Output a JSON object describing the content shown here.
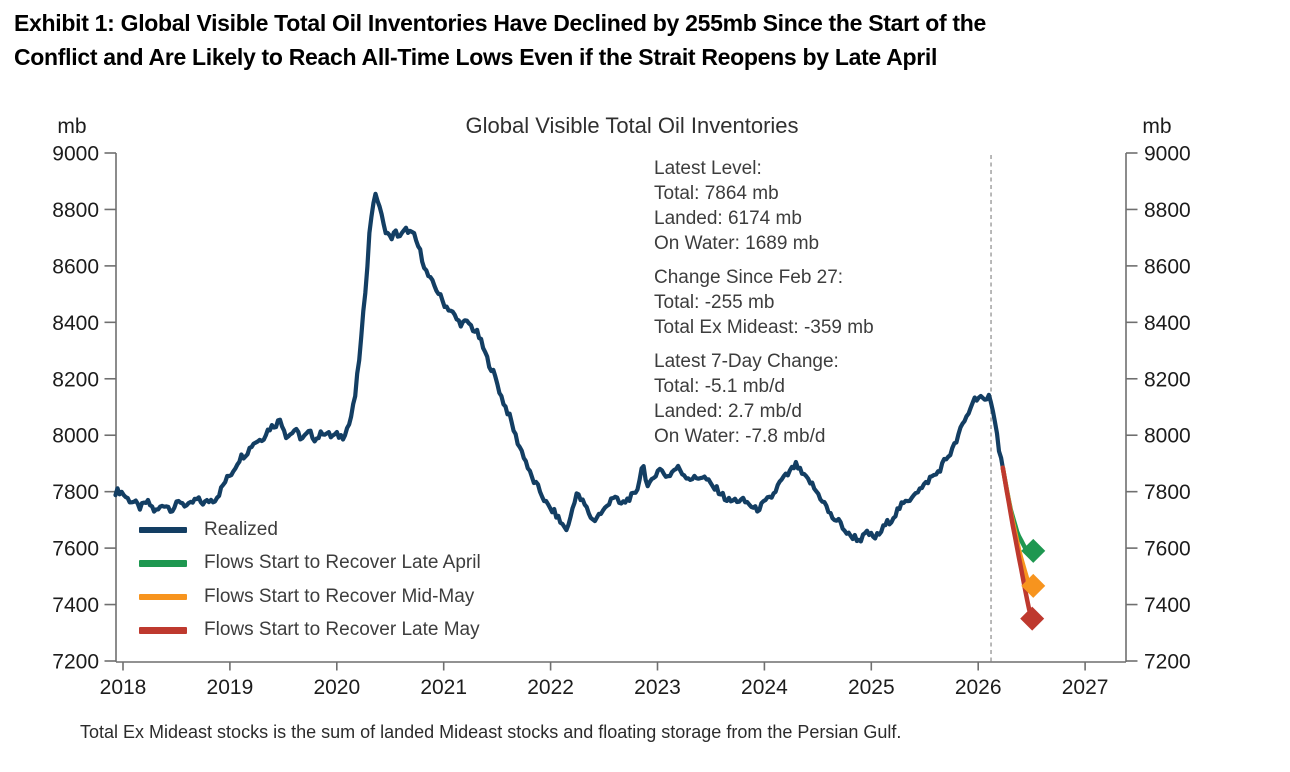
{
  "exhibit": {
    "title_line1": "Exhibit 1: Global Visible Total Oil Inventories Have Declined by 255mb Since the Start of the",
    "title_line2": "Conflict and Are Likely to Reach All-Time Lows Even if the Strait Reopens by Late April",
    "footnote": "Total Ex Mideast stocks is the sum of landed Mideast stocks and floating storage from the Persian Gulf."
  },
  "chart_data": {
    "type": "line",
    "title": "Global Visible Total Oil Inventories",
    "unit_left": "mb",
    "unit_right": "mb",
    "ylim": [
      7200,
      9000
    ],
    "yticks": [
      9000,
      8800,
      8600,
      8400,
      8200,
      8000,
      7800,
      7600,
      7400,
      7200
    ],
    "xticks": [
      2018,
      2019,
      2020,
      2021,
      2022,
      2023,
      2024,
      2025,
      2026,
      2027
    ],
    "grid": false,
    "legend_position": "lower-left",
    "event_line_x": 2026.12,
    "annotation": {
      "groups": [
        [
          "Latest Level:",
          "Total: 7864 mb",
          "Landed: 6174 mb",
          "On Water: 1689 mb"
        ],
        [
          "Change Since Feb 27:",
          "Total: -255 mb",
          "Total Ex Mideast: -359 mb"
        ],
        [
          "Latest 7-Day Change:",
          "Total: -5.1 mb/d",
          "Landed: 2.7 mb/d",
          "On Water: -7.8 mb/d"
        ]
      ]
    },
    "legend": [
      {
        "label": "Realized",
        "color": "#133E63"
      },
      {
        "label": "Flows Start to Recover Late April",
        "color": "#1E9750"
      },
      {
        "label": "Flows Start to Recover Mid-May",
        "color": "#F7941E"
      },
      {
        "label": "Flows Start to Recover Late May",
        "color": "#BE392E"
      }
    ],
    "series": [
      {
        "name": "Realized",
        "color": "#133E63",
        "width": 4.2,
        "noise": 12,
        "points": [
          [
            2017.93,
            7800
          ],
          [
            2018.0,
            7795
          ],
          [
            2018.08,
            7765
          ],
          [
            2018.15,
            7745
          ],
          [
            2018.22,
            7762
          ],
          [
            2018.3,
            7732
          ],
          [
            2018.38,
            7752
          ],
          [
            2018.46,
            7742
          ],
          [
            2018.54,
            7763
          ],
          [
            2018.62,
            7750
          ],
          [
            2018.7,
            7772
          ],
          [
            2018.78,
            7760
          ],
          [
            2018.85,
            7772
          ],
          [
            2018.92,
            7808
          ],
          [
            2019.0,
            7862
          ],
          [
            2019.1,
            7918
          ],
          [
            2019.2,
            7962
          ],
          [
            2019.3,
            7992
          ],
          [
            2019.4,
            8032
          ],
          [
            2019.47,
            8058
          ],
          [
            2019.53,
            7992
          ],
          [
            2019.6,
            8022
          ],
          [
            2019.67,
            7984
          ],
          [
            2019.74,
            8014
          ],
          [
            2019.8,
            7980
          ],
          [
            2019.87,
            8018
          ],
          [
            2019.94,
            7992
          ],
          [
            2020.0,
            8005
          ],
          [
            2020.06,
            7992
          ],
          [
            2020.12,
            8045
          ],
          [
            2020.17,
            8135
          ],
          [
            2020.22,
            8300
          ],
          [
            2020.27,
            8530
          ],
          [
            2020.31,
            8740
          ],
          [
            2020.35,
            8845
          ],
          [
            2020.39,
            8832
          ],
          [
            2020.44,
            8742
          ],
          [
            2020.5,
            8692
          ],
          [
            2020.55,
            8722
          ],
          [
            2020.6,
            8705
          ],
          [
            2020.66,
            8728
          ],
          [
            2020.72,
            8712
          ],
          [
            2020.78,
            8645
          ],
          [
            2020.84,
            8580
          ],
          [
            2020.9,
            8532
          ],
          [
            2020.96,
            8500
          ],
          [
            2021.03,
            8452
          ],
          [
            2021.1,
            8425
          ],
          [
            2021.17,
            8392
          ],
          [
            2021.24,
            8398
          ],
          [
            2021.31,
            8362
          ],
          [
            2021.4,
            8282
          ],
          [
            2021.5,
            8182
          ],
          [
            2021.6,
            8078
          ],
          [
            2021.7,
            7972
          ],
          [
            2021.8,
            7872
          ],
          [
            2021.9,
            7798
          ],
          [
            2022.0,
            7738
          ],
          [
            2022.08,
            7702
          ],
          [
            2022.16,
            7662
          ],
          [
            2022.24,
            7800
          ],
          [
            2022.32,
            7748
          ],
          [
            2022.4,
            7700
          ],
          [
            2022.48,
            7722
          ],
          [
            2022.57,
            7782
          ],
          [
            2022.65,
            7758
          ],
          [
            2022.73,
            7772
          ],
          [
            2022.8,
            7792
          ],
          [
            2022.86,
            7902
          ],
          [
            2022.91,
            7812
          ],
          [
            2023.0,
            7878
          ],
          [
            2023.1,
            7858
          ],
          [
            2023.2,
            7885
          ],
          [
            2023.3,
            7842
          ],
          [
            2023.4,
            7856
          ],
          [
            2023.5,
            7828
          ],
          [
            2023.6,
            7788
          ],
          [
            2023.7,
            7764
          ],
          [
            2023.8,
            7772
          ],
          [
            2023.9,
            7738
          ],
          [
            2024.0,
            7754
          ],
          [
            2024.1,
            7802
          ],
          [
            2024.2,
            7858
          ],
          [
            2024.3,
            7892
          ],
          [
            2024.4,
            7842
          ],
          [
            2024.5,
            7798
          ],
          [
            2024.6,
            7728
          ],
          [
            2024.7,
            7688
          ],
          [
            2024.8,
            7645
          ],
          [
            2024.88,
            7628
          ],
          [
            2024.95,
            7652
          ],
          [
            2025.02,
            7636
          ],
          [
            2025.1,
            7662
          ],
          [
            2025.2,
            7712
          ],
          [
            2025.3,
            7755
          ],
          [
            2025.4,
            7792
          ],
          [
            2025.5,
            7825
          ],
          [
            2025.6,
            7862
          ],
          [
            2025.7,
            7912
          ],
          [
            2025.8,
            7982
          ],
          [
            2025.88,
            8058
          ],
          [
            2025.95,
            8118
          ],
          [
            2026.02,
            8142
          ],
          [
            2026.07,
            8112
          ],
          [
            2026.11,
            8138
          ],
          [
            2026.15,
            8072
          ],
          [
            2026.19,
            7968
          ],
          [
            2026.23,
            7885
          ]
        ]
      },
      {
        "name": "Flows Start to Recover Late April",
        "color": "#1E9750",
        "width": 4.5,
        "noise": 0,
        "points": [
          [
            2026.23,
            7885
          ],
          [
            2026.3,
            7742
          ],
          [
            2026.37,
            7650
          ],
          [
            2026.44,
            7600
          ],
          [
            2026.51,
            7590
          ]
        ]
      },
      {
        "name": "Flows Start to Recover Mid-May",
        "color": "#F7941E",
        "width": 4.5,
        "noise": 0,
        "points": [
          [
            2026.23,
            7885
          ],
          [
            2026.31,
            7718
          ],
          [
            2026.39,
            7580
          ],
          [
            2026.46,
            7488
          ],
          [
            2026.51,
            7466
          ]
        ]
      },
      {
        "name": "Flows Start to Recover Late May",
        "color": "#BE392E",
        "width": 4.5,
        "noise": 0,
        "points": [
          [
            2026.23,
            7885
          ],
          [
            2026.32,
            7688
          ],
          [
            2026.41,
            7510
          ],
          [
            2026.47,
            7392
          ],
          [
            2026.5,
            7350
          ]
        ]
      }
    ],
    "markers": [
      {
        "name": "late-april-endpoint",
        "x": 2026.515,
        "value": 7590,
        "color": "#1E9750"
      },
      {
        "name": "mid-may-endpoint",
        "x": 2026.515,
        "value": 7466,
        "color": "#F7941E"
      },
      {
        "name": "late-may-endpoint",
        "x": 2026.505,
        "value": 7350,
        "color": "#BE392E"
      }
    ]
  }
}
